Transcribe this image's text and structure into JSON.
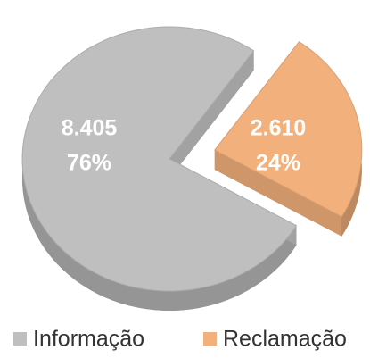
{
  "chart_data": {
    "type": "pie",
    "categories": [
      "Informação",
      "Reclamação"
    ],
    "values": [
      8405,
      2610
    ],
    "value_labels": [
      "8.405",
      "2.610"
    ],
    "percent_labels": [
      "76%",
      "24%"
    ],
    "colors": [
      "#bfbfbf",
      "#f2b07c"
    ],
    "legend": "bottom"
  }
}
